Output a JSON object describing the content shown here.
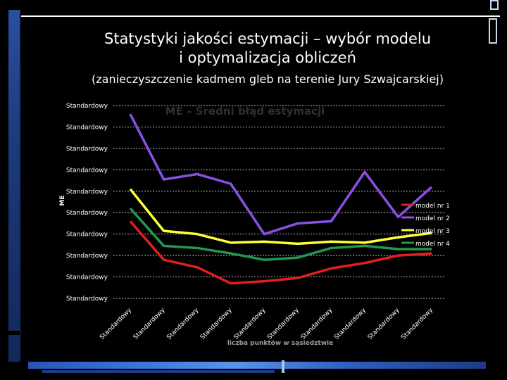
{
  "slide": {
    "title_line1": "Statystyki jakości estymacji – wybór modelu",
    "title_line2": "i optymalizacja obliczeń",
    "subtitle": "(zanieczyszczenie kadmem gleb na terenie Jury Szwajcarskiej)"
  },
  "chart_data": {
    "type": "line",
    "title": "ME – Średni błąd estymacji",
    "xlabel": "liczba punktów w sąsiedztwie",
    "ylabel": "ME",
    "grid": true,
    "legend_position": "right",
    "categories": [
      "Standardowy",
      "Standardowy",
      "Standardowy",
      "Standardowy",
      "Standardowy",
      "Standardowy",
      "Standardowy",
      "Standardowy",
      "Standardowy",
      "Standardowy"
    ],
    "y_tick_labels": [
      "Standardowy",
      "Standardowy",
      "Standardowy",
      "Standardowy",
      "Standardowy",
      "Standardowy",
      "Standardowy",
      "Standardowy",
      "Standardowy",
      "Standardowy"
    ],
    "ylim": [
      0,
      9
    ],
    "series": [
      {
        "name": "model nr 1",
        "color": "#e0201b",
        "values": [
          3.6,
          1.8,
          1.45,
          0.7,
          0.8,
          0.95,
          1.4,
          1.65,
          2.0,
          2.1
        ]
      },
      {
        "name": "model nr 2",
        "color": "#8a50e6",
        "values": [
          8.6,
          5.55,
          5.8,
          5.35,
          3.0,
          3.5,
          3.6,
          5.9,
          3.8,
          5.2
        ]
      },
      {
        "name": "model nr 3",
        "color": "#ffff33",
        "values": [
          5.1,
          3.15,
          3.0,
          2.6,
          2.65,
          2.55,
          2.65,
          2.6,
          2.85,
          3.05
        ]
      },
      {
        "name": "model nr 4",
        "color": "#1f9b4f",
        "values": [
          4.2,
          2.45,
          2.35,
          2.1,
          1.8,
          1.9,
          2.35,
          2.45,
          2.3,
          2.3
        ]
      }
    ]
  }
}
